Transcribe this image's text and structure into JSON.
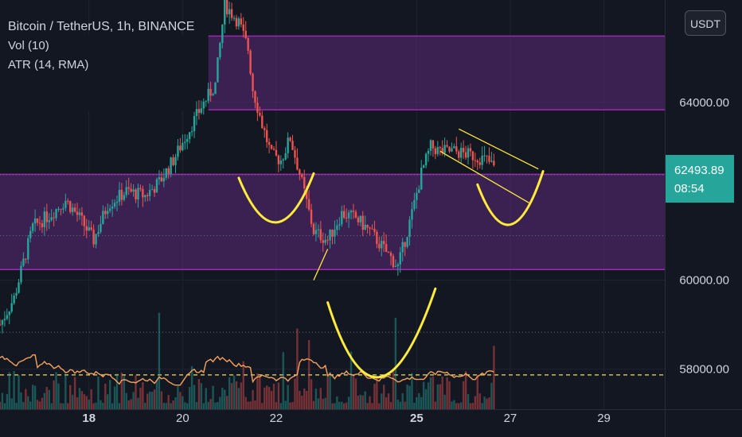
{
  "header": {
    "symbol": "Bitcoin / TetherUS, 1h, BINANCE",
    "volume_indicator": "Vol (10)",
    "atr_indicator": "ATR (14, RMA)"
  },
  "currency_button": "USDT",
  "price_badge": {
    "price": "62493.89",
    "countdown": "08:54",
    "color": "#26a69a"
  },
  "colors": {
    "background": "#131722",
    "up": "#26a69a",
    "down": "#ef5350",
    "zone_fill": "#5c2a78",
    "zone_border": "#9c27b0",
    "annotation": "#ffeb3b",
    "atr_line": "#f5a25d",
    "dashed_level": "#f0e35a"
  },
  "chart_data": {
    "type": "candlestick",
    "title": "Bitcoin / TetherUS, 1h, BINANCE",
    "y_axis": {
      "ticks": [
        60000,
        64000,
        58000
      ],
      "tick_labels": [
        "60000.00",
        "64000.00",
        "58000.00"
      ],
      "range": [
        57100,
        66300
      ]
    },
    "x_axis": {
      "tick_labels": [
        "18",
        "20",
        "22",
        "25",
        "27",
        "29"
      ],
      "tick_values": [
        18,
        20,
        22,
        25,
        27,
        29
      ],
      "bold_labels": [
        "18",
        "25"
      ],
      "range": [
        16.1,
        30.3
      ]
    },
    "last_price": 62493.89,
    "zones": [
      {
        "from": 63830,
        "to": 65490
      },
      {
        "from": 60240,
        "to": 62380
      }
    ],
    "dotted_levels": [
      62370,
      61000,
      58830
    ],
    "dashed_level": 57870,
    "price_path": [
      [
        16.1,
        59000
      ],
      [
        16.4,
        59600
      ],
      [
        16.8,
        61200
      ],
      [
        17.2,
        61500
      ],
      [
        17.5,
        61800
      ],
      [
        17.8,
        61400
      ],
      [
        18.1,
        60900
      ],
      [
        18.4,
        61700
      ],
      [
        18.8,
        62000
      ],
      [
        19.2,
        61900
      ],
      [
        19.5,
        62200
      ],
      [
        19.8,
        62700
      ],
      [
        20.1,
        63300
      ],
      [
        20.4,
        63900
      ],
      [
        20.7,
        64400
      ],
      [
        20.9,
        66200
      ],
      [
        21.2,
        65800
      ],
      [
        21.4,
        65200
      ],
      [
        21.5,
        64300
      ],
      [
        21.7,
        63500
      ],
      [
        21.9,
        62800
      ],
      [
        22.1,
        62700
      ],
      [
        22.3,
        63200
      ],
      [
        22.5,
        62400
      ],
      [
        22.8,
        61100
      ],
      [
        23.1,
        60900
      ],
      [
        23.4,
        61500
      ],
      [
        23.7,
        61400
      ],
      [
        24.0,
        61100
      ],
      [
        24.3,
        60700
      ],
      [
        24.6,
        60300
      ],
      [
        24.9,
        61500
      ],
      [
        25.1,
        62400
      ],
      [
        25.3,
        63000
      ],
      [
        25.5,
        62900
      ],
      [
        25.8,
        62900
      ],
      [
        26.2,
        62800
      ],
      [
        26.5,
        62700
      ],
      [
        26.7,
        62490
      ]
    ],
    "volume_band": [
      57100,
      58700
    ],
    "atr_band": [
      57600,
      58420
    ],
    "annotations": {
      "smile_curves": [
        {
          "from": [
            21.2,
            62300
          ],
          "mid": [
            22.0,
            61300
          ],
          "to": [
            22.8,
            62400
          ]
        },
        {
          "from": [
            23.1,
            59500
          ],
          "mid": [
            24.2,
            57820
          ],
          "to": [
            25.4,
            59810
          ]
        },
        {
          "from": [
            26.3,
            62150
          ],
          "mid": [
            27.0,
            61250
          ],
          "to": [
            27.7,
            62450
          ]
        }
      ],
      "channel_lines": [
        {
          "from": [
            25.9,
            63400
          ],
          "to": [
            27.6,
            62500
          ]
        },
        {
          "from": [
            25.5,
            62900
          ],
          "to": [
            27.4,
            61740
          ]
        }
      ],
      "small_line": {
        "from": [
          22.8,
          60000
        ],
        "to": [
          23.1,
          60700
        ]
      }
    }
  }
}
